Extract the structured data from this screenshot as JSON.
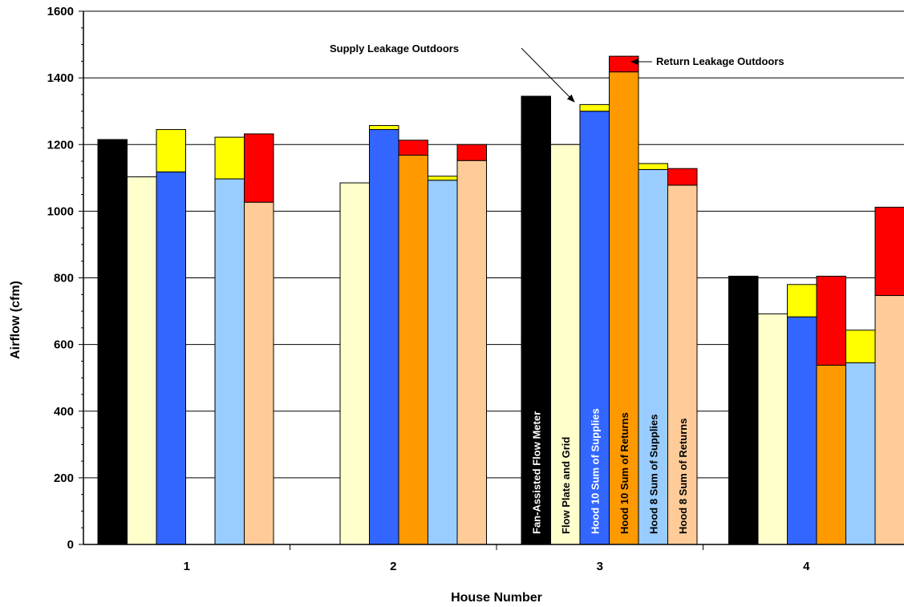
{
  "chart_data": {
    "type": "bar",
    "xlabel": "House Number",
    "ylabel": "Airflow (cfm)",
    "ylim": [
      0,
      1600
    ],
    "ytick_step": 200,
    "grid": true,
    "categories": [
      "1",
      "2",
      "3",
      "4"
    ],
    "series": [
      {
        "label": "Fan-Assisted Flow Meter",
        "color": "#000000",
        "base": [
          1215,
          null,
          1345,
          805
        ],
        "leakage": [
          0,
          0,
          0,
          0
        ]
      },
      {
        "label": "Flow Plate and Grid",
        "color": "#FFFFCC",
        "base": [
          1103,
          1085,
          1200,
          692
        ],
        "leakage": [
          0,
          0,
          0,
          0
        ]
      },
      {
        "label": "Hood 10 Sum of Supplies",
        "color": "#3366FF",
        "base": [
          1118,
          1245,
          1300,
          683
        ],
        "leakage": [
          127,
          12,
          20,
          97
        ]
      },
      {
        "label": "Hood 10 Sum of Returns",
        "color": "#FF9900",
        "base": [
          null,
          1168,
          1418,
          538
        ],
        "leakage": [
          0,
          45,
          47,
          267
        ]
      },
      {
        "label": "Hood 8 Sum of Supplies",
        "color": "#99CCFF",
        "base": [
          1097,
          1093,
          1125,
          545
        ],
        "leakage": [
          125,
          12,
          18,
          98
        ]
      },
      {
        "label": "Hood 8 Sum of Returns",
        "color": "#FFCC99",
        "base": [
          1027,
          1152,
          1078,
          747
        ],
        "leakage": [
          205,
          48,
          50,
          265
        ]
      }
    ],
    "supply_leakage_color": "#FFFF00",
    "return_leakage_color": "#FF0000",
    "annotations": [
      {
        "text": "Supply Leakage Outdoors"
      },
      {
        "text": "Return Leakage Outdoors"
      }
    ]
  }
}
